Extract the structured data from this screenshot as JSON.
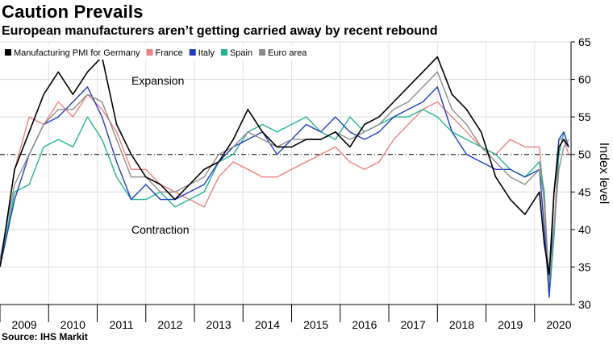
{
  "header": {
    "title": "Caution Prevails",
    "subtitle": "European manufacturers aren’t getting carried away by recent rebound"
  },
  "footer": {
    "source": "Source: IHS Markit"
  },
  "chart_data": {
    "type": "line",
    "ylabel": "Index level",
    "ylim": [
      30,
      65
    ],
    "yticks": [
      30,
      35,
      40,
      45,
      50,
      55,
      60,
      65
    ],
    "reference_line": 50,
    "xlim": [
      2009.0,
      2020.75
    ],
    "year_labels": [
      "2009",
      "2010",
      "2011",
      "2012",
      "2013",
      "2014",
      "2015",
      "2016",
      "2017",
      "2018",
      "2019",
      "2020"
    ],
    "annotations": [
      "Expansion",
      "Contraction"
    ],
    "series": [
      {
        "name": "France",
        "color": "#f08080",
        "x": [
          2009.0,
          2009.3,
          2009.6,
          2009.9,
          2010.2,
          2010.5,
          2010.8,
          2011.1,
          2011.4,
          2011.7,
          2012.0,
          2012.3,
          2012.6,
          2012.9,
          2013.2,
          2013.5,
          2013.8,
          2014.1,
          2014.4,
          2014.7,
          2015.0,
          2015.3,
          2015.6,
          2015.9,
          2016.2,
          2016.5,
          2016.8,
          2017.1,
          2017.4,
          2017.7,
          2018.0,
          2018.3,
          2018.6,
          2018.9,
          2019.2,
          2019.5,
          2019.8,
          2020.1,
          2020.2,
          2020.3,
          2020.4,
          2020.5,
          2020.6,
          2020.7
        ],
        "values": [
          35,
          48,
          55,
          54,
          57,
          55,
          58,
          56,
          53,
          48,
          48,
          46,
          45,
          44,
          43,
          47,
          49,
          48,
          47,
          47,
          48,
          49,
          50,
          51,
          49,
          48,
          49,
          52,
          54,
          56,
          57,
          55,
          53,
          51,
          50,
          52,
          51,
          51,
          43,
          31,
          40,
          52,
          52,
          50
        ]
      },
      {
        "name": "Spain",
        "color": "#22b591",
        "x": [
          2009.0,
          2009.3,
          2009.6,
          2009.9,
          2010.2,
          2010.5,
          2010.8,
          2011.1,
          2011.4,
          2011.7,
          2012.0,
          2012.3,
          2012.6,
          2012.9,
          2013.2,
          2013.5,
          2013.8,
          2014.1,
          2014.4,
          2014.7,
          2015.0,
          2015.3,
          2015.6,
          2015.9,
          2016.2,
          2016.5,
          2016.8,
          2017.1,
          2017.4,
          2017.7,
          2018.0,
          2018.3,
          2018.6,
          2018.9,
          2019.2,
          2019.5,
          2019.8,
          2020.1,
          2020.2,
          2020.3,
          2020.4,
          2020.5,
          2020.6,
          2020.7
        ],
        "values": [
          35,
          45,
          46,
          51,
          52,
          51,
          55,
          52,
          47,
          44,
          44,
          45,
          43,
          44,
          45,
          49,
          50,
          53,
          54,
          53,
          54,
          55,
          53,
          52,
          55,
          53,
          54,
          55,
          55,
          56,
          55,
          53,
          52,
          51,
          50,
          48,
          47,
          49,
          45,
          31,
          39,
          50,
          53,
          51
        ]
      },
      {
        "name": "Italy",
        "color": "#1f3fbf",
        "x": [
          2009.0,
          2009.3,
          2009.6,
          2009.9,
          2010.2,
          2010.5,
          2010.8,
          2011.1,
          2011.4,
          2011.7,
          2012.0,
          2012.3,
          2012.6,
          2012.9,
          2013.2,
          2013.5,
          2013.8,
          2014.1,
          2014.4,
          2014.7,
          2015.0,
          2015.3,
          2015.6,
          2015.9,
          2016.2,
          2016.5,
          2016.8,
          2017.1,
          2017.4,
          2017.7,
          2018.0,
          2018.3,
          2018.6,
          2018.9,
          2019.2,
          2019.5,
          2019.8,
          2020.1,
          2020.2,
          2020.3,
          2020.4,
          2020.5,
          2020.6,
          2020.7
        ],
        "values": [
          35,
          44,
          50,
          54,
          55,
          57,
          59,
          55,
          49,
          44,
          46,
          44,
          44,
          45,
          46,
          49,
          51,
          52,
          53,
          50,
          52,
          54,
          53,
          55,
          53,
          52,
          53,
          55,
          56,
          57,
          59,
          53,
          50,
          49,
          48,
          48,
          47,
          48,
          40,
          31,
          45,
          52,
          53,
          51
        ]
      },
      {
        "name": "Euro area",
        "color": "#8c8c8c",
        "x": [
          2009.0,
          2009.3,
          2009.6,
          2009.9,
          2010.2,
          2010.5,
          2010.8,
          2011.1,
          2011.4,
          2011.7,
          2012.0,
          2012.3,
          2012.6,
          2012.9,
          2013.2,
          2013.5,
          2013.8,
          2014.1,
          2014.4,
          2014.7,
          2015.0,
          2015.3,
          2015.6,
          2015.9,
          2016.2,
          2016.5,
          2016.8,
          2017.1,
          2017.4,
          2017.7,
          2018.0,
          2018.3,
          2018.6,
          2018.9,
          2019.2,
          2019.5,
          2019.8,
          2020.1,
          2020.2,
          2020.3,
          2020.4,
          2020.5,
          2020.6,
          2020.7
        ],
        "values": [
          36,
          46,
          50,
          54,
          56,
          56,
          58,
          57,
          52,
          47,
          47,
          45,
          45,
          46,
          47,
          50,
          51,
          53,
          52,
          51,
          52,
          52,
          52,
          53,
          52,
          53,
          54,
          56,
          57,
          59,
          61,
          56,
          54,
          51,
          49,
          47,
          46,
          48,
          44,
          33,
          40,
          48,
          51,
          52
        ]
      },
      {
        "name": "Manufacturing PMI for Germany",
        "color": "#000000",
        "x": [
          2009.0,
          2009.3,
          2009.6,
          2009.9,
          2010.2,
          2010.5,
          2010.8,
          2011.1,
          2011.4,
          2011.7,
          2012.0,
          2012.3,
          2012.6,
          2012.9,
          2013.2,
          2013.5,
          2013.8,
          2014.1,
          2014.4,
          2014.7,
          2015.0,
          2015.3,
          2015.6,
          2015.9,
          2016.2,
          2016.5,
          2016.8,
          2017.1,
          2017.4,
          2017.7,
          2018.0,
          2018.3,
          2018.6,
          2018.9,
          2019.2,
          2019.5,
          2019.8,
          2020.1,
          2020.2,
          2020.3,
          2020.4,
          2020.5,
          2020.6,
          2020.7
        ],
        "values": [
          35,
          48,
          53,
          58,
          61,
          58,
          61,
          63,
          54,
          50,
          47,
          46,
          44,
          46,
          48,
          49,
          52,
          56,
          53,
          51,
          51,
          52,
          52,
          53,
          51,
          54,
          55,
          57,
          59,
          61,
          63,
          58,
          56,
          53,
          47,
          44,
          42,
          45,
          38,
          34,
          45,
          51,
          52,
          51
        ]
      }
    ]
  }
}
